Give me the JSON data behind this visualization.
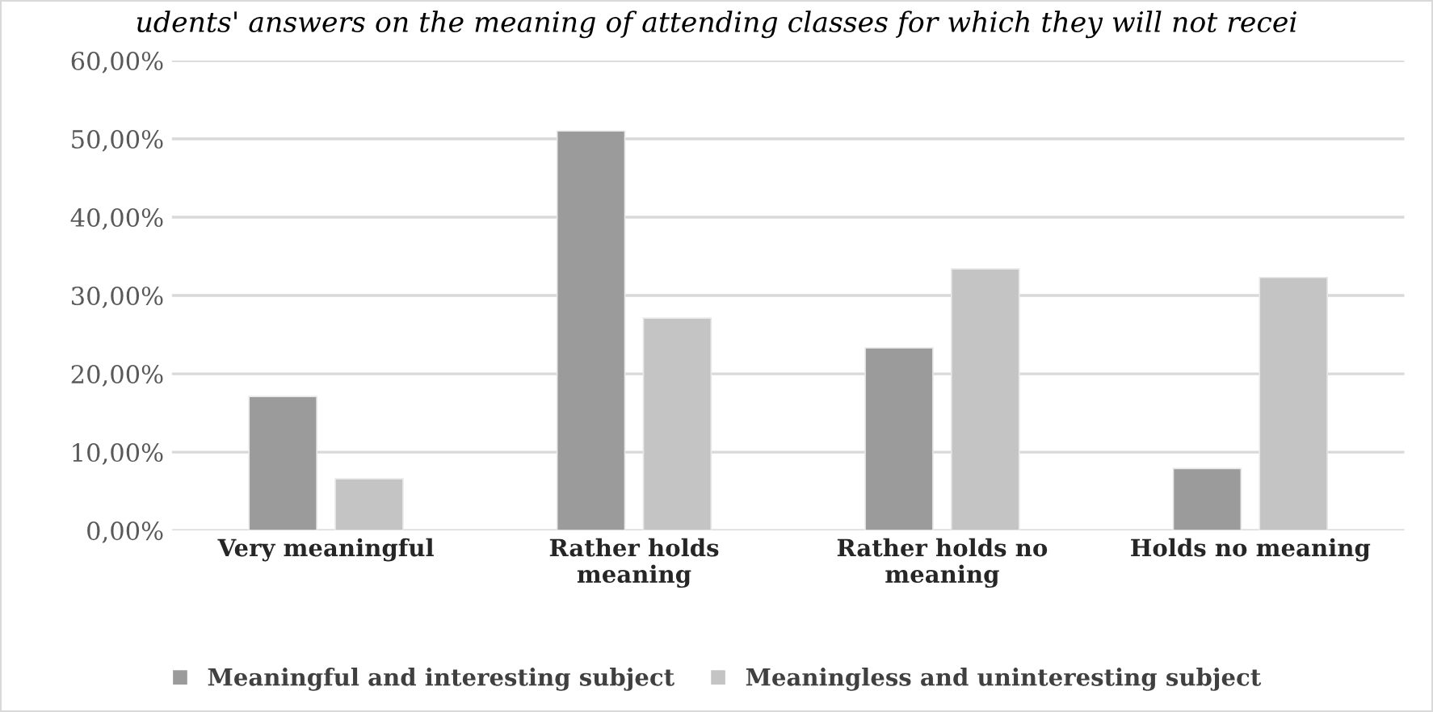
{
  "chart_data": {
    "type": "bar",
    "title": "udents' answers on the meaning of attending classes for which they will not recei",
    "categories": [
      "Very meaningful",
      "Rather holds\nmeaning",
      "Rather holds no\nmeaning",
      "Holds no meaning"
    ],
    "series": [
      {
        "name": "Meaningful and interesting subject",
        "color": "#9b9b9b",
        "values": [
          17.1,
          51.0,
          23.3,
          7.9
        ]
      },
      {
        "name": "Meaningless and uninteresting subject",
        "color": "#c4c4c4",
        "values": [
          6.6,
          27.1,
          33.4,
          32.3
        ]
      }
    ],
    "ylim": [
      0,
      60
    ],
    "yticks": [
      {
        "value": 0,
        "label": "0,00%"
      },
      {
        "value": 10,
        "label": "10,00%"
      },
      {
        "value": 20,
        "label": "20,00%"
      },
      {
        "value": 30,
        "label": "30,00%"
      },
      {
        "value": 40,
        "label": "40,00%"
      },
      {
        "value": 50,
        "label": "50,00%"
      },
      {
        "value": 60,
        "label": "60,00%"
      }
    ],
    "grid": "y",
    "legend": "bottom"
  }
}
